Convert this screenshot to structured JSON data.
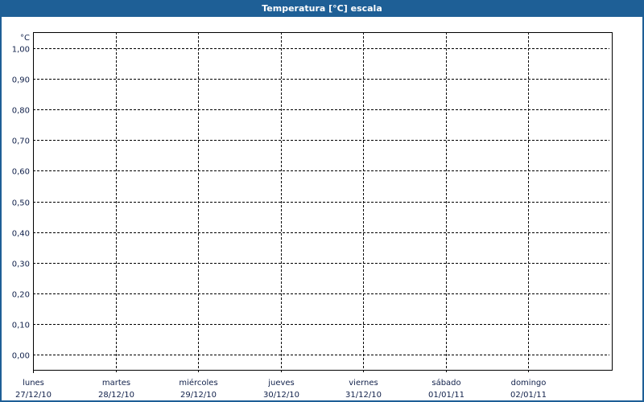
{
  "window": {
    "title": "Temperatura [°C] escala",
    "accent": "#1e5f96"
  },
  "chart_data": {
    "type": "line",
    "title": "Temperatura [°C] escala",
    "ylabel": "°C",
    "ylim": [
      0,
      1
    ],
    "yticks": [
      "0,00",
      "0,10",
      "0,20",
      "0,30",
      "0,40",
      "0,50",
      "0,60",
      "0,70",
      "0,80",
      "0,90",
      "1,00"
    ],
    "x": [
      {
        "day": "lunes",
        "date": "27/12/10"
      },
      {
        "day": "martes",
        "date": "28/12/10"
      },
      {
        "day": "miércoles",
        "date": "29/12/10"
      },
      {
        "day": "jueves",
        "date": "30/12/10"
      },
      {
        "day": "viernes",
        "date": "31/12/10"
      },
      {
        "day": "sábado",
        "date": "01/01/11"
      },
      {
        "day": "domingo",
        "date": "02/01/11"
      }
    ],
    "series": [],
    "grid": true
  }
}
